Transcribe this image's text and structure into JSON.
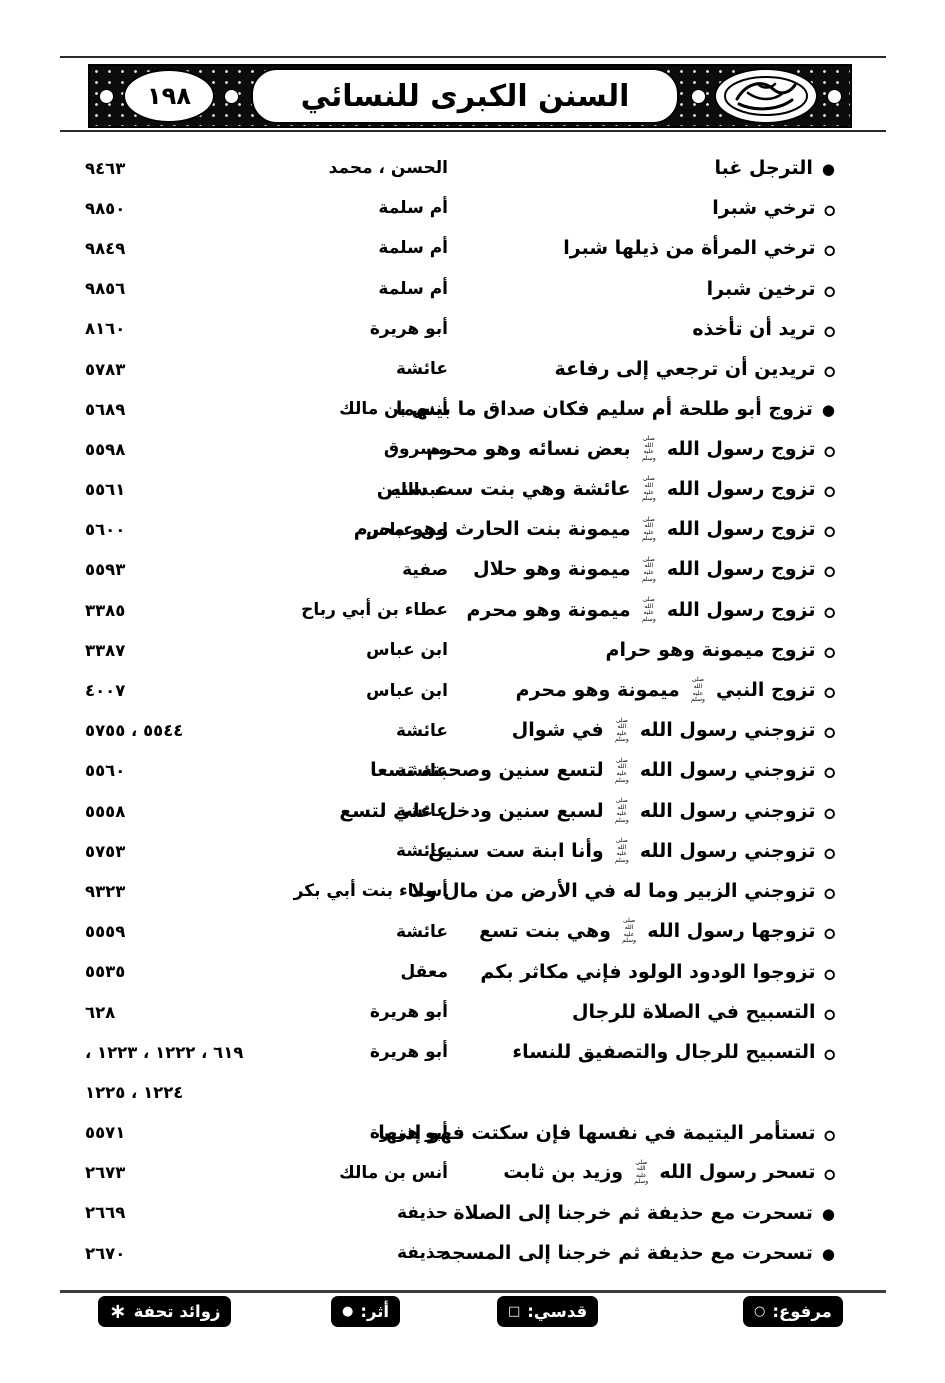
{
  "page": {
    "title": "السنن الكبرى للنسائي",
    "number": "١٩٨"
  },
  "honorific": "صلى الله عليه وسلم",
  "markers": {
    "filled": "●",
    "hollow": "○"
  },
  "entries": [
    {
      "marker": "filled",
      "text": "الترجل غبا",
      "narrator": "الحسن ، محمد",
      "number": "٩٤٦٣"
    },
    {
      "marker": "hollow",
      "text": "ترخي شبرا",
      "narrator": "أم سلمة",
      "number": "٩٨٥٠"
    },
    {
      "marker": "hollow",
      "text": "ترخي المرأة من ذيلها شبرا",
      "narrator": "أم سلمة",
      "number": "٩٨٤٩"
    },
    {
      "marker": "hollow",
      "text": "ترخين شبرا",
      "narrator": "أم سلمة",
      "number": "٩٨٥٦"
    },
    {
      "marker": "hollow",
      "text": "تريد أن تأخذه",
      "narrator": "أبو هريرة",
      "number": "٨١٦٠"
    },
    {
      "marker": "hollow",
      "text": "تريدين أن ترجعي إلى رفاعة",
      "narrator": "عائشة",
      "number": "٥٧٨٣"
    },
    {
      "marker": "filled",
      "text": "تزوج أبو طلحة أم سليم فكان صداق ما بينهما",
      "narrator": "أنس بن مالك",
      "number": "٥٦٨٩"
    },
    {
      "marker": "hollow",
      "text": "تزوج رسول الله ﷺ بعض نسائه وهو محرم",
      "narrator": "مسروق",
      "number": "٥٥٩٨"
    },
    {
      "marker": "hollow",
      "text": "تزوج رسول الله ﷺ عائشة وهي بنت ست سنين",
      "narrator": "عبدالله",
      "number": "٥٥٦١"
    },
    {
      "marker": "hollow",
      "text": "تزوج رسول الله ﷺ ميمونة بنت الحارث وهو محرم",
      "narrator": "ابن عباس",
      "number": "٥٦٠٠"
    },
    {
      "marker": "hollow",
      "text": "تزوج رسول الله ﷺ ميمونة وهو حلال",
      "narrator": "صفية",
      "number": "٥٥٩٣"
    },
    {
      "marker": "hollow",
      "text": "تزوج رسول الله ﷺ ميمونة وهو محرم",
      "narrator": "عطاء بن أبي رباح",
      "number": "٣٣٨٥"
    },
    {
      "marker": "hollow",
      "text": "تزوج ميمونة وهو حرام",
      "narrator": "ابن عباس",
      "number": "٣٣٨٧"
    },
    {
      "marker": "hollow",
      "text": "تزوج النبي ﷺ ميمونة وهو محرم",
      "narrator": "ابن عباس",
      "number": "٤٠٠٧"
    },
    {
      "marker": "hollow",
      "text": "تزوجني رسول الله ﷺ في شوال",
      "narrator": "عائشة",
      "number": "٥٥٤٤ ، ٥٧٥٥"
    },
    {
      "marker": "hollow",
      "text": "تزوجني رسول الله ﷺ لتسع سنين وصحبته تسعا",
      "narrator": "عائشة",
      "number": "٥٥٦٠"
    },
    {
      "marker": "hollow",
      "text": "تزوجني رسول الله ﷺ لسبع سنين ودخل علي لتسع",
      "narrator": "عائشة",
      "number": "٥٥٥٨"
    },
    {
      "marker": "hollow",
      "text": "تزوجني رسول الله ﷺ وأنا ابنة ست سنين",
      "narrator": "عائشة",
      "number": "٥٧٥٣"
    },
    {
      "marker": "hollow",
      "text": "تزوجني الزبير وما له في الأرض من مال ولا",
      "narrator": "أسماء بنت أبي بكر",
      "number": "٩٣٢٣"
    },
    {
      "marker": "hollow",
      "text": "تزوجها رسول الله ﷺ وهي بنت تسع",
      "narrator": "عائشة",
      "number": "٥٥٥٩"
    },
    {
      "marker": "hollow",
      "text": "تزوجوا الودود الولود فإني مكاثر بكم",
      "narrator": "معقل",
      "number": "٥٥٣٥"
    },
    {
      "marker": "hollow",
      "text": "التسبيح في الصلاة للرجال",
      "narrator": "أبو هريرة",
      "number": "٦٢٨"
    },
    {
      "marker": "hollow",
      "text": "التسبيح للرجال والتصفيق للنساء",
      "narrator": "أبو هريرة",
      "number": "٦١٩ ، ١٢٢٢ ، ١٢٢٣ ،"
    },
    {
      "marker": "none",
      "text": "",
      "narrator": "",
      "number": "١٢٢٤ ، ١٢٢٥"
    },
    {
      "marker": "hollow",
      "text": "تستأمر اليتيمة في نفسها فإن سكتت فهو إذنها",
      "narrator": "أبو هريرة",
      "number": "٥٥٧١"
    },
    {
      "marker": "hollow",
      "text": "تسحر رسول الله ﷺ وزيد بن ثابت",
      "narrator": "أنس بن مالك",
      "number": "٢٦٧٣"
    },
    {
      "marker": "filled",
      "text": "تسحرت مع حذيفة ثم خرجنا إلى الصلاة",
      "narrator": "حذيفة",
      "number": "٢٦٦٩"
    },
    {
      "marker": "filled",
      "text": "تسحرت مع حذيفة ثم خرجنا إلى المسجد",
      "narrator": "حذيفة",
      "number": "٢٦٧٠"
    }
  ],
  "legend": [
    {
      "label": "مرفوع:",
      "symbol": "○"
    },
    {
      "label": "قدسي:",
      "symbol": "□"
    },
    {
      "label": "أثر:",
      "symbol": "●"
    },
    {
      "label": "زوائد تحفة",
      "symbol": "∗"
    }
  ]
}
